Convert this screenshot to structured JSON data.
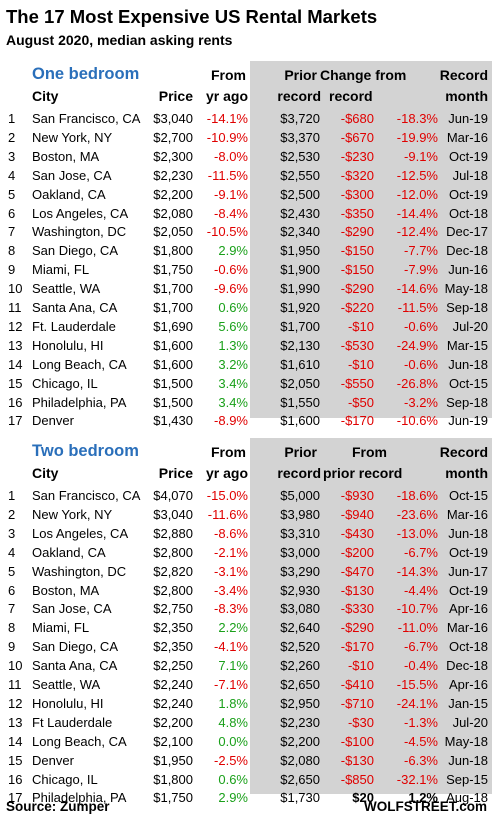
{
  "title": "The 17 Most Expensive US Rental Markets",
  "subtitle": "August 2020, median asking rents",
  "one_bedroom": {
    "section_title": "One bedroom",
    "headers": {
      "city": "City",
      "price": "Price",
      "from_line1": "From",
      "from_line2": "yr ago",
      "prior_line1": "Prior",
      "prior_line2": "record",
      "change_line1": "Change from",
      "change_line2": "record",
      "record_line1": "Record",
      "record_line2": "month"
    },
    "rows": [
      {
        "n": "1",
        "city": "San Francisco, CA",
        "price": "$3,040",
        "yoy": "-14.1%",
        "prior": "$3,720",
        "chg": "-$680",
        "pct": "-18.3%",
        "month": "Jun-19"
      },
      {
        "n": "2",
        "city": "New York, NY",
        "price": "$2,700",
        "yoy": "-10.9%",
        "prior": "$3,370",
        "chg": "-$670",
        "pct": "-19.9%",
        "month": "Mar-16"
      },
      {
        "n": "3",
        "city": "Boston, MA",
        "price": "$2,300",
        "yoy": "-8.0%",
        "prior": "$2,530",
        "chg": "-$230",
        "pct": "-9.1%",
        "month": "Oct-19"
      },
      {
        "n": "4",
        "city": "San Jose, CA",
        "price": "$2,230",
        "yoy": "-11.5%",
        "prior": "$2,550",
        "chg": "-$320",
        "pct": "-12.5%",
        "month": "Jul-18"
      },
      {
        "n": "5",
        "city": "Oakland, CA",
        "price": "$2,200",
        "yoy": "-9.1%",
        "prior": "$2,500",
        "chg": "-$300",
        "pct": "-12.0%",
        "month": "Oct-19"
      },
      {
        "n": "6",
        "city": "Los Angeles, CA",
        "price": "$2,080",
        "yoy": "-8.4%",
        "prior": "$2,430",
        "chg": "-$350",
        "pct": "-14.4%",
        "month": "Oct-18"
      },
      {
        "n": "7",
        "city": "Washington, DC",
        "price": "$2,050",
        "yoy": "-10.5%",
        "prior": "$2,340",
        "chg": "-$290",
        "pct": "-12.4%",
        "month": "Dec-17"
      },
      {
        "n": "8",
        "city": "San Diego, CA",
        "price": "$1,800",
        "yoy": "2.9%",
        "prior": "$1,950",
        "chg": "-$150",
        "pct": "-7.7%",
        "month": "Dec-18"
      },
      {
        "n": "9",
        "city": "Miami, FL",
        "price": "$1,750",
        "yoy": "-0.6%",
        "prior": "$1,900",
        "chg": "-$150",
        "pct": "-7.9%",
        "month": "Jun-16"
      },
      {
        "n": "10",
        "city": "Seattle, WA",
        "price": "$1,700",
        "yoy": "-9.6%",
        "prior": "$1,990",
        "chg": "-$290",
        "pct": "-14.6%",
        "month": "May-18"
      },
      {
        "n": "11",
        "city": "Santa Ana, CA",
        "price": "$1,700",
        "yoy": "0.6%",
        "prior": "$1,920",
        "chg": "-$220",
        "pct": "-11.5%",
        "month": "Sep-18"
      },
      {
        "n": "12",
        "city": "Ft. Lauderdale",
        "price": "$1,690",
        "yoy": "5.6%",
        "prior": "$1,700",
        "chg": "-$10",
        "pct": "-0.6%",
        "month": "Jul-20"
      },
      {
        "n": "13",
        "city": "Honolulu, HI",
        "price": "$1,600",
        "yoy": "1.3%",
        "prior": "$2,130",
        "chg": "-$530",
        "pct": "-24.9%",
        "month": "Mar-15"
      },
      {
        "n": "14",
        "city": "Long Beach, CA",
        "price": "$1,600",
        "yoy": "3.2%",
        "prior": "$1,610",
        "chg": "-$10",
        "pct": "-0.6%",
        "month": "Jun-18"
      },
      {
        "n": "15",
        "city": "Chicago, IL",
        "price": "$1,500",
        "yoy": "3.4%",
        "prior": "$2,050",
        "chg": "-$550",
        "pct": "-26.8%",
        "month": "Oct-15"
      },
      {
        "n": "16",
        "city": "Philadelphia, PA",
        "price": "$1,500",
        "yoy": "3.4%",
        "prior": "$1,550",
        "chg": "-$50",
        "pct": "-3.2%",
        "month": "Sep-18"
      },
      {
        "n": "17",
        "city": "Denver",
        "price": "$1,430",
        "yoy": "-8.9%",
        "prior": "$1,600",
        "chg": "-$170",
        "pct": "-10.6%",
        "month": "Jun-19"
      }
    ]
  },
  "two_bedroom": {
    "section_title": "Two bedroom",
    "headers": {
      "city": "City",
      "price": "Price",
      "from_line1": "From",
      "from_line2": "yr ago",
      "prior_line1": "Prior",
      "prior_line2": "record",
      "change_line1": "From",
      "change_line2": "prior record",
      "record_line1": "Record",
      "record_line2": "month"
    },
    "rows": [
      {
        "n": "1",
        "city": "San Francisco, CA",
        "price": "$4,070",
        "yoy": "-15.0%",
        "prior": "$5,000",
        "chg": "-$930",
        "pct": "-18.6%",
        "month": "Oct-15"
      },
      {
        "n": "2",
        "city": "New York, NY",
        "price": "$3,040",
        "yoy": "-11.6%",
        "prior": "$3,980",
        "chg": "-$940",
        "pct": "-23.6%",
        "month": "Mar-16"
      },
      {
        "n": "3",
        "city": "Los Angeles, CA",
        "price": "$2,880",
        "yoy": "-8.6%",
        "prior": "$3,310",
        "chg": "-$430",
        "pct": "-13.0%",
        "month": "Jun-18"
      },
      {
        "n": "4",
        "city": "Oakland, CA",
        "price": "$2,800",
        "yoy": "-2.1%",
        "prior": "$3,000",
        "chg": "-$200",
        "pct": "-6.7%",
        "month": "Oct-19"
      },
      {
        "n": "5",
        "city": "Washington, DC",
        "price": "$2,820",
        "yoy": "-3.1%",
        "prior": "$3,290",
        "chg": "-$470",
        "pct": "-14.3%",
        "month": "Jun-17"
      },
      {
        "n": "6",
        "city": "Boston, MA",
        "price": "$2,800",
        "yoy": "-3.4%",
        "prior": "$2,930",
        "chg": "-$130",
        "pct": "-4.4%",
        "month": "Oct-19"
      },
      {
        "n": "7",
        "city": "San Jose, CA",
        "price": "$2,750",
        "yoy": "-8.3%",
        "prior": "$3,080",
        "chg": "-$330",
        "pct": "-10.7%",
        "month": "Apr-16"
      },
      {
        "n": "8",
        "city": "Miami, FL",
        "price": "$2,350",
        "yoy": "2.2%",
        "prior": "$2,640",
        "chg": "-$290",
        "pct": "-11.0%",
        "month": "Mar-16"
      },
      {
        "n": "9",
        "city": "San Diego, CA",
        "price": "$2,350",
        "yoy": "-4.1%",
        "prior": "$2,520",
        "chg": "-$170",
        "pct": "-6.7%",
        "month": "Oct-18"
      },
      {
        "n": "10",
        "city": "Santa Ana, CA",
        "price": "$2,250",
        "yoy": "7.1%",
        "prior": "$2,260",
        "chg": "-$10",
        "pct": "-0.4%",
        "month": "Dec-18"
      },
      {
        "n": "11",
        "city": "Seattle, WA",
        "price": "$2,240",
        "yoy": "-7.1%",
        "prior": "$2,650",
        "chg": "-$410",
        "pct": "-15.5%",
        "month": "Apr-16"
      },
      {
        "n": "12",
        "city": "Honolulu, HI",
        "price": "$2,240",
        "yoy": "1.8%",
        "prior": "$2,950",
        "chg": "-$710",
        "pct": "-24.1%",
        "month": "Jan-15"
      },
      {
        "n": "13",
        "city": "Ft Lauderdale",
        "price": "$2,200",
        "yoy": "4.8%",
        "prior": "$2,230",
        "chg": "-$30",
        "pct": "-1.3%",
        "month": "Jul-20"
      },
      {
        "n": "14",
        "city": "Long Beach, CA",
        "price": "$2,100",
        "yoy": "0.0%",
        "prior": "$2,200",
        "chg": "-$100",
        "pct": "-4.5%",
        "month": "May-18"
      },
      {
        "n": "15",
        "city": "Denver",
        "price": "$1,950",
        "yoy": "-2.5%",
        "prior": "$2,080",
        "chg": "-$130",
        "pct": "-6.3%",
        "month": "Jun-18"
      },
      {
        "n": "16",
        "city": "Chicago, IL",
        "price": "$1,800",
        "yoy": "0.6%",
        "prior": "$2,650",
        "chg": "-$850",
        "pct": "-32.1%",
        "month": "Sep-15"
      },
      {
        "n": "17",
        "city": "Philadelphia, PA",
        "price": "$1,750",
        "yoy": "2.9%",
        "prior": "$1,730",
        "chg": "$20",
        "pct": "1.2%",
        "month": "Aug-18"
      }
    ]
  },
  "colors": {
    "negative": "#e00000",
    "positive": "#1aa01a",
    "section_title": "#2a6fba",
    "panel": "#d3d3d3"
  },
  "footer": {
    "source": "Source: Zumper",
    "brand": "WOLFSTREET.com"
  }
}
